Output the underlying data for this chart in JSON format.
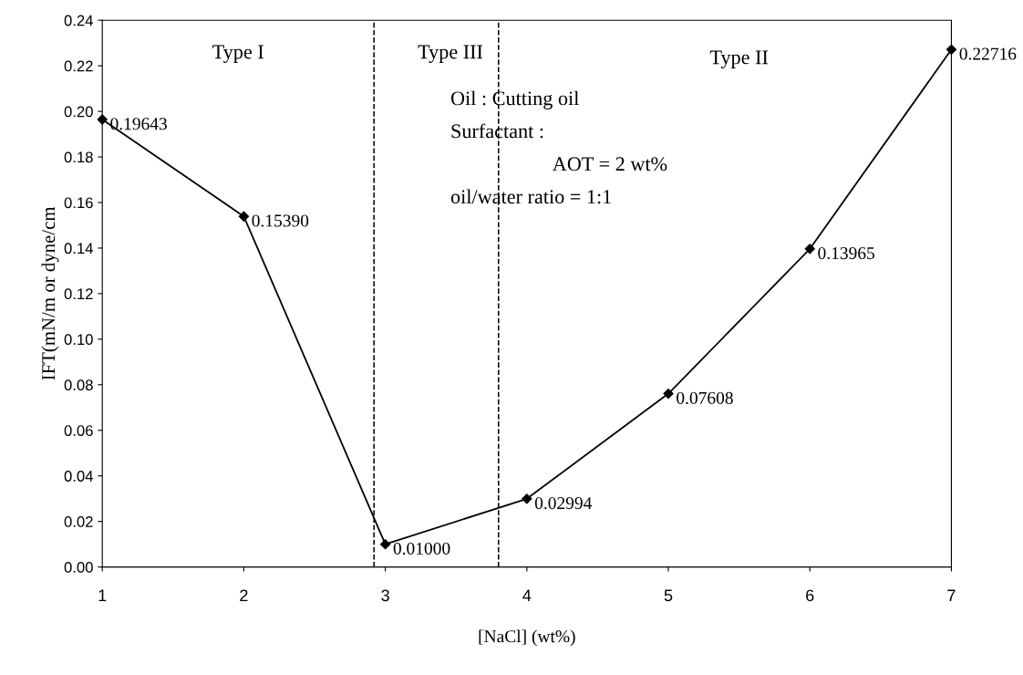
{
  "chart_data": {
    "type": "line",
    "xlabel": "[NaCl] (wt%)",
    "ylabel": "IFT(mN/m or dyne/cm",
    "x": [
      1,
      2,
      3,
      4,
      5,
      6,
      7
    ],
    "series": [
      {
        "color": "#000000",
        "values": [
          0.19643,
          0.1539,
          0.01,
          0.02994,
          0.07608,
          0.13965,
          0.22716
        ]
      }
    ],
    "value_labels": [
      "0.19643",
      "0.15390",
      "0.01000",
      "0.02994",
      "0.07608",
      "0.13965",
      "0.22716"
    ],
    "marker": "diamond",
    "line_style": "solid",
    "grid": false,
    "legend": false,
    "xlim": [
      1,
      7
    ],
    "xticks": [
      1,
      2,
      3,
      4,
      5,
      6,
      7
    ],
    "ylim": [
      0,
      0.24
    ],
    "yticks": [
      {
        "value": 0,
        "label": "0.00"
      },
      {
        "value": 0.02,
        "label": "0.02"
      },
      {
        "value": 0.04,
        "label": "0.04"
      },
      {
        "value": 0.06,
        "label": "0.06"
      },
      {
        "value": 0.08,
        "label": "0.08"
      },
      {
        "value": 0.1,
        "label": "0.10"
      },
      {
        "value": 0.12,
        "label": "0.12"
      },
      {
        "value": 0.14,
        "label": "0.14"
      },
      {
        "value": 0.16,
        "label": "0.16"
      },
      {
        "value": 0.18,
        "label": "0.18"
      },
      {
        "value": 0.2,
        "label": "0.20"
      },
      {
        "value": 0.22,
        "label": "0.22"
      },
      {
        "value": 0.24,
        "label": "0.24"
      }
    ],
    "ref_lines": [
      {
        "axis": "x",
        "value": 2.92,
        "color": "#000000",
        "line_style": "dashed"
      },
      {
        "axis": "x",
        "value": 3.8,
        "color": "#000000",
        "line_style": "dashed"
      }
    ],
    "annotations": [
      "Type I",
      "Type III",
      "Type II",
      "Oil : Cutting oil",
      "Surfactant :",
      "AOT = 2 wt%",
      "oil/water ratio = 1:1"
    ]
  }
}
